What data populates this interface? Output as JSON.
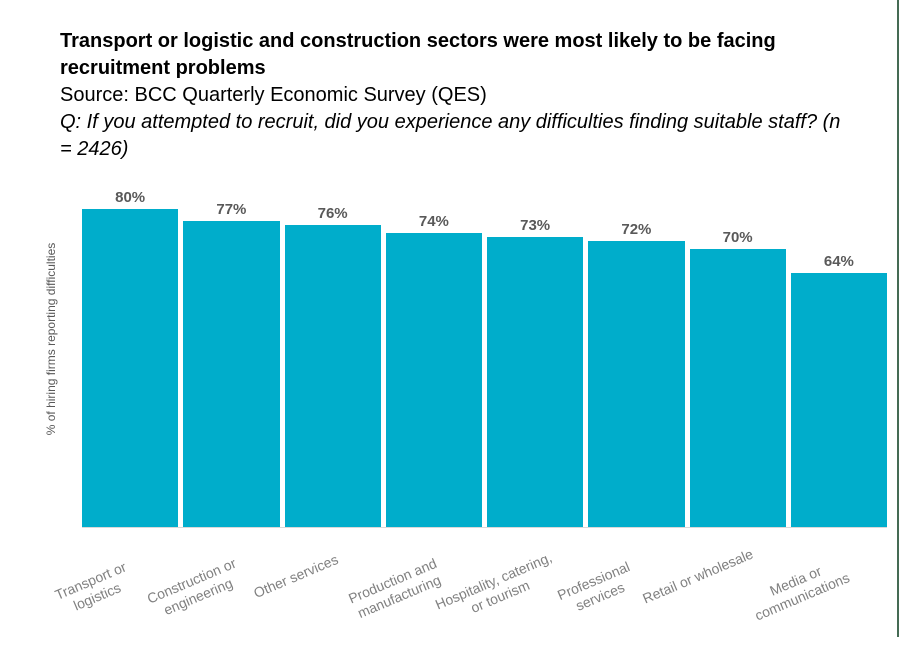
{
  "header": {
    "title": "Transport or logistic and construction sectors were most likely to be facing recruitment problems",
    "source": "Source: BCC Quarterly Economic Survey (QES)",
    "question": "Q: If you attempted to recruit, did you experience any difficulties finding suitable staff? (n = 2426)"
  },
  "chart_data": {
    "type": "bar",
    "title": "Transport or logistic and construction sectors were most likely to be facing recruitment problems",
    "subtitle": "Source: BCC Quarterly Economic Survey (QES)",
    "annotation": "Q: If you attempted to recruit, did you experience any difficulties finding suitable staff? (n = 2426)",
    "categories": [
      "Transport or logistics",
      "Construction or engineering",
      "Other services",
      "Production and manufacturing",
      "Hospitality, catering, or tourism",
      "Professional services",
      "Retail or wholesale",
      "Media or communications"
    ],
    "categories_display": [
      [
        "Transport or",
        "logistics"
      ],
      [
        "Construction or",
        "engineering"
      ],
      [
        "Other services"
      ],
      [
        "Production and",
        "manufacturing"
      ],
      [
        "Hospitality, catering,",
        "or tourism"
      ],
      [
        "Professional",
        "services"
      ],
      [
        "Retail or wholesale"
      ],
      [
        "Media or",
        "communications"
      ]
    ],
    "values": [
      80,
      77,
      76,
      74,
      73,
      72,
      70,
      64
    ],
    "value_labels": [
      "80%",
      "77%",
      "76%",
      "74%",
      "73%",
      "72%",
      "70%",
      "64%"
    ],
    "xlabel": "",
    "ylabel": "% of hiring firms reporting difficulties",
    "ylim": [
      0,
      100
    ],
    "grid": false,
    "legend": "none",
    "bar_color": "#00ADCB",
    "value_label_color": "#595959",
    "category_label_color": "#808080",
    "baseline_color": "#D9D9D9"
  },
  "decor": {
    "right_rule_color": "#456B54"
  }
}
